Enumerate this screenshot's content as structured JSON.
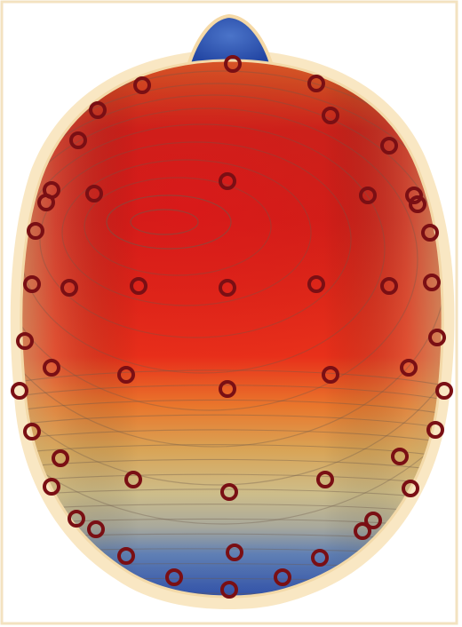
{
  "figure": {
    "kind": "EEG scalp topographic map (3D head, top view)",
    "colors": {
      "background": "#ffffff",
      "frame": "#f6e7c7",
      "halo": "#f7dfb0",
      "max": "#e8160f",
      "high": "#d83a18",
      "mid": "#e9902e",
      "neutral": "#d9c99a",
      "low": "#6d86b5",
      "min": "#2f4fa8",
      "electrode": "#7a0f14",
      "contour": "#6e5a4a"
    },
    "electrode_count": 51
  }
}
